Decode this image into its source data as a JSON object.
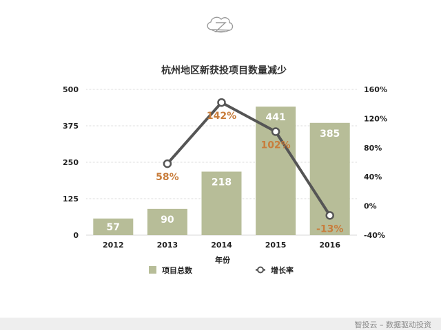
{
  "footer": {
    "brand": "智投云 – 数据驱动投资"
  },
  "colors": {
    "bar": "#b7bd98",
    "line": "#555555",
    "data_label_line": "#c87d3c",
    "bar_label": "#ffffff",
    "axis_text": "#222222",
    "grid": "#d8d8d8",
    "title": "#333333"
  },
  "chart_data": {
    "type": "bar",
    "title": "杭州地区新获投项目数量减少",
    "xlabel": "年份",
    "ylabel": "",
    "categories": [
      "2012",
      "2013",
      "2014",
      "2015",
      "2016"
    ],
    "ylim": [
      0,
      500
    ],
    "yticks": [
      "500",
      "375",
      "250",
      "125",
      "0"
    ],
    "y2lim": [
      -40,
      160
    ],
    "y2ticks": [
      "160%",
      "120%",
      "80%",
      "40%",
      "0%",
      "-40%"
    ],
    "grid": true,
    "legend_position": "bottom",
    "series": [
      {
        "name": "项目总数",
        "kind": "bar",
        "axis": "left",
        "values": [
          57,
          90,
          218,
          441,
          385
        ],
        "labels": [
          "57",
          "90",
          "218",
          "441",
          "385"
        ]
      },
      {
        "name": "增长率",
        "kind": "line",
        "axis": "right",
        "values": [
          null,
          58,
          142,
          102,
          -13
        ],
        "labels": [
          "",
          "58%",
          "142%",
          "102%",
          "-13%"
        ]
      }
    ]
  }
}
